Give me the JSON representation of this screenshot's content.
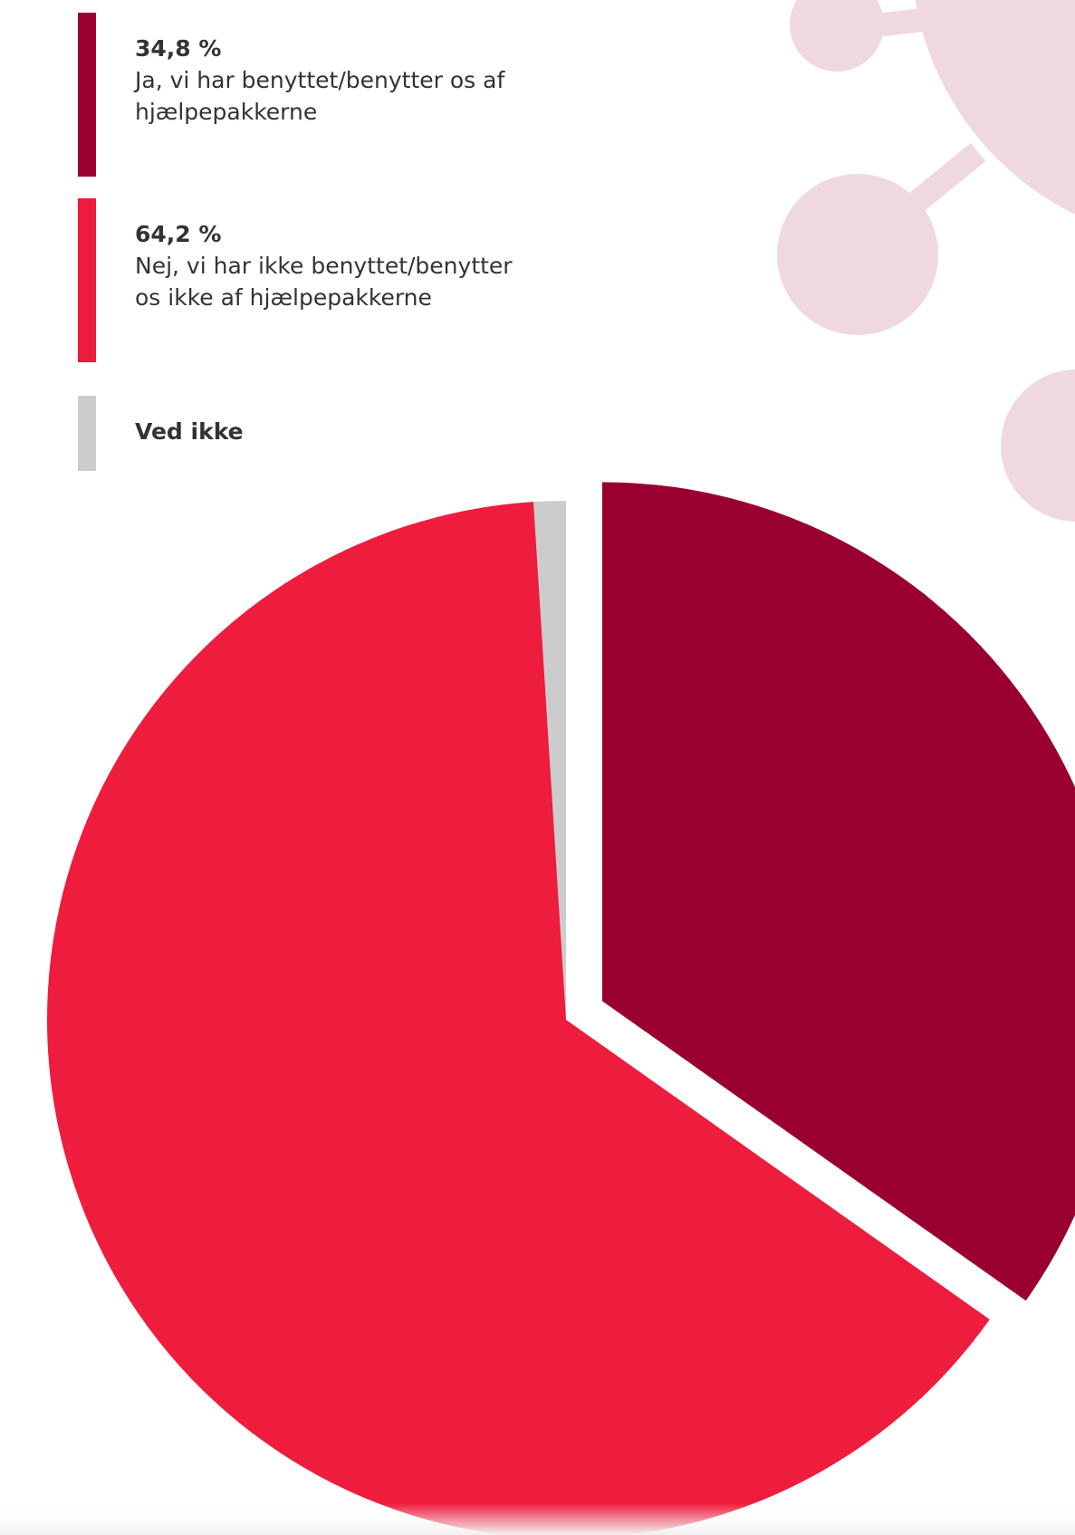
{
  "chart_data": {
    "type": "pie",
    "categories": [
      "Ja, vi har benyttet/benytter os af hjælpepakkerne",
      "Nej, vi har ikke benyttet/benytter os ikke af hjælpepakkerne",
      "Ved ikke"
    ],
    "values": [
      34.8,
      64.2,
      1.0
    ],
    "value_labels": [
      "34,8 %",
      "64,2 %",
      null
    ],
    "colors": [
      "#990030",
      "#ee1c3d",
      "#cccccc"
    ]
  }
}
